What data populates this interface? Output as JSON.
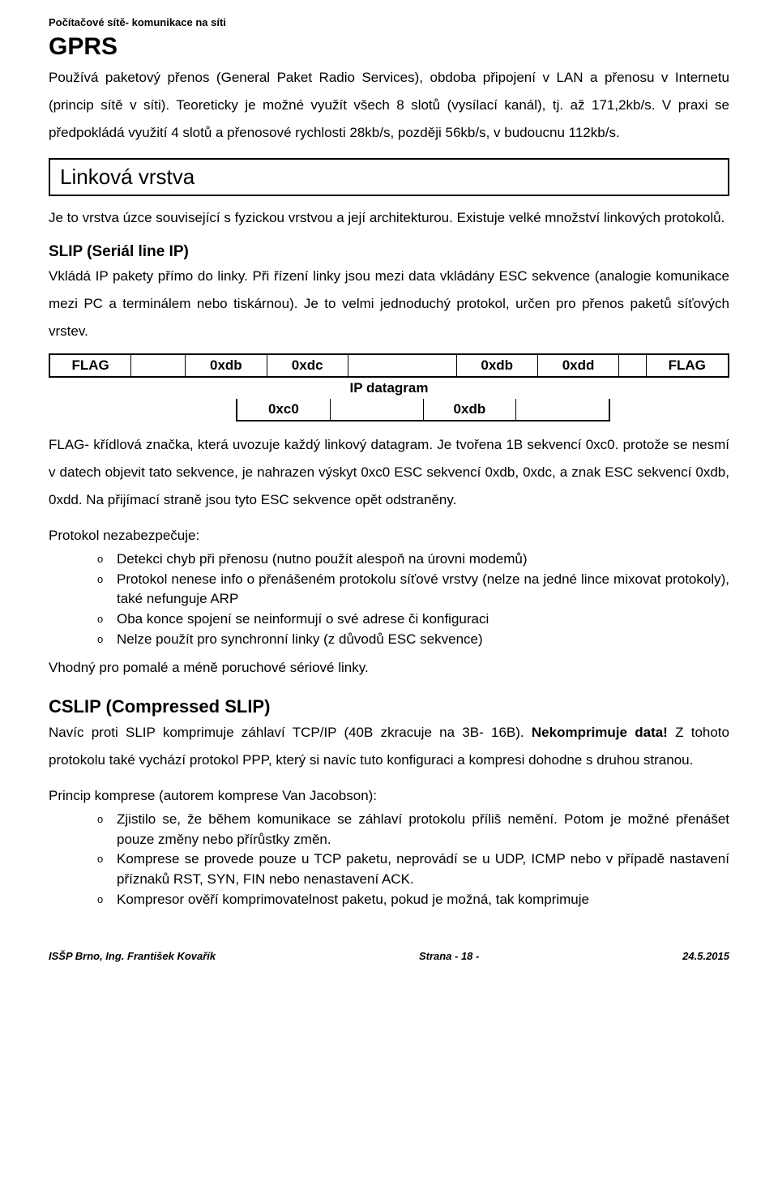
{
  "header": "Počítačové sítě- komunikace na síti",
  "gprs": {
    "title": "GPRS",
    "para": "Používá paketový přenos (General Paket Radio Services), obdoba připojení v LAN a přenosu v Internetu (princip sítě v síti). Teoreticky je možné využít všech 8 slotů (vysílací kanál), tj. až 171,2kb/s. V praxi se předpokládá využití 4 slotů a přenosové rychlosti 28kb/s, později 56kb/s, v budoucnu 112kb/s."
  },
  "linkova": {
    "title": "Linková vrstva",
    "para": "Je to vrstva úzce související s fyzickou vrstvou a její architekturou. Existuje velké množství linkových protokolů."
  },
  "slip": {
    "title": "SLIP (Seriál line IP)",
    "para": "Vkládá IP pakety přímo do linky. Při řízení linky jsou mezi data vkládány ESC sekvence (analogie komunikace mezi PC a terminálem nebo tiskárnou). Je to velmi jednoduchý protokol, určen pro přenos paketů síťových vrstev.",
    "diagram": {
      "row1": [
        "FLAG",
        "",
        "0xdb",
        "0xdc",
        "",
        "0xdb",
        "0xdd",
        "",
        "FLAG"
      ],
      "row1_widths": [
        12,
        8,
        12,
        12,
        16,
        12,
        12,
        4,
        12
      ],
      "middle": "IP datagram",
      "row2": [
        "0xc0",
        "",
        "0xdb",
        ""
      ],
      "row2_widths": [
        22,
        28,
        22,
        28
      ]
    },
    "para2a": "FLAG- křídlová značka, která uvozuje každý linkový datagram. Je tvořena 1B sekvencí 0xc0. protože se nesmí v datech objevit tato sekvence, je nahrazen výskyt 0xc0 ESC sekvencí 0xdb, 0xdc, a znak ESC sekvencí 0xdb, 0xdd. Na přijímací straně jsou tyto ESC sekvence opět odstraněny.",
    "nezab_label": "Protokol nezabezpečuje:",
    "nezab_items": [
      "Detekci chyb při přenosu (nutno použít alespoň na úrovni modemů)",
      "Protokol nenese info o přenášeném protokolu síťové vrstvy (nelze na jedné lince mixovat protokoly), také nefunguje ARP",
      "Oba konce spojení se neinformují o své adrese či konfiguraci",
      "Nelze použít pro synchronní linky (z důvodů ESC sekvence)"
    ],
    "vhodny": "Vhodný pro pomalé a méně poruchové sériové linky."
  },
  "cslip": {
    "title": "CSLIP (Compressed SLIP)",
    "para_html_parts": {
      "a": "Navíc proti SLIP komprimuje záhlaví TCP/IP (40B zkracuje na 3B- 16B). ",
      "b": "Nekomprimuje data!",
      "c": " Z tohoto protokolu také vychází protokol PPP, který si navíc tuto konfiguraci a kompresi dohodne s druhou stranou."
    },
    "princip_label": "Princip komprese (autorem komprese Van Jacobson):",
    "princip_items": [
      "Zjistilo se, že během komunikace se záhlaví protokolu příliš nemění. Potom je možné přenášet pouze změny nebo přírůstky změn.",
      "Komprese se provede pouze u TCP paketu, neprovádí se u UDP, ICMP nebo v případě nastavení příznaků RST, SYN, FIN nebo nenastavení ACK.",
      "Kompresor ověří komprimovatelnost paketu, pokud je možná, tak komprimuje"
    ]
  },
  "footer": {
    "left": "ISŠP Brno, Ing. František Kovařík",
    "center": "Strana - 18 -",
    "right": "24.5.2015"
  }
}
